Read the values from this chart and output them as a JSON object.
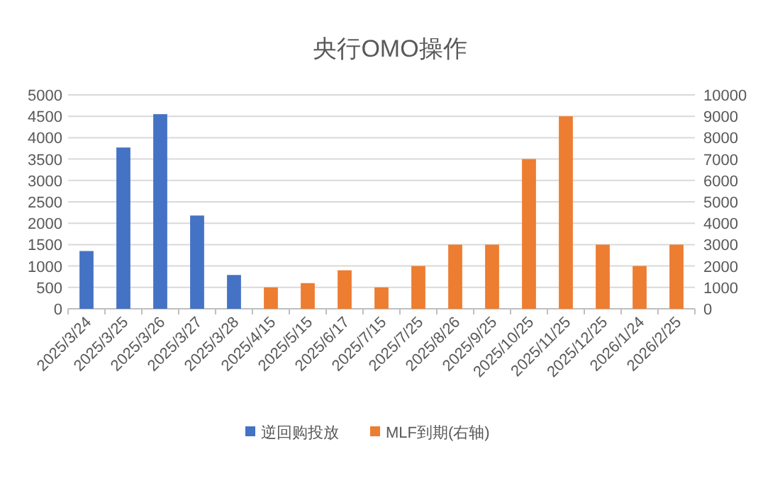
{
  "chart_data": {
    "type": "bar",
    "title": "央行OMO操作",
    "categories": [
      "2025/3/24",
      "2025/3/25",
      "2025/3/26",
      "2025/3/27",
      "2025/3/28",
      "2025/4/15",
      "2025/5/15",
      "2025/6/17",
      "2025/7/15",
      "2025/7/25",
      "2025/8/26",
      "2025/9/25",
      "2025/10/25",
      "2025/11/25",
      "2025/12/25",
      "2026/1/24",
      "2026/2/25"
    ],
    "series": [
      {
        "name": "逆回购投放",
        "color": "#4472c4",
        "values": [
          1350,
          3770,
          4550,
          2180,
          790,
          null,
          null,
          null,
          null,
          null,
          null,
          null,
          null,
          null,
          null,
          null,
          null
        ]
      },
      {
        "name": "MLF到期(右轴)",
        "color": "#ed7d31",
        "axis": "y2",
        "values": [
          null,
          null,
          null,
          null,
          null,
          1000,
          1200,
          1800,
          1000,
          2000,
          3000,
          3000,
          7000,
          9000,
          3000,
          2000,
          3000
        ]
      }
    ],
    "ylim": [
      0,
      5000
    ],
    "yticks": [
      0,
      500,
      1000,
      1500,
      2000,
      2500,
      3000,
      3500,
      4000,
      4500,
      5000
    ],
    "y2lim": [
      0,
      10000
    ],
    "y2ticks": [
      0,
      1000,
      2000,
      3000,
      4000,
      5000,
      6000,
      7000,
      8000,
      9000,
      10000
    ],
    "grid": "y",
    "legend": "bottom"
  }
}
